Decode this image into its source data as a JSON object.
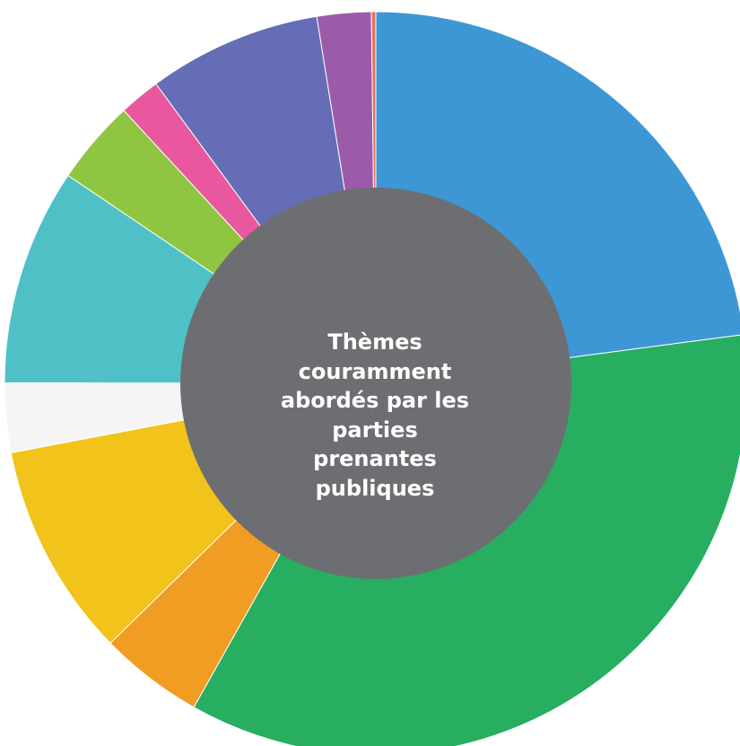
{
  "chart_data": {
    "type": "pie",
    "title": "",
    "center_label": "Thèmes\ncouramment\nabordés par les\nparties\nprenantes\npubliques",
    "center_color": "#6D6E71",
    "start_angle_deg": 0,
    "slices": [
      {
        "value": 24.3,
        "color": "#3E97D5"
      },
      {
        "value": 37.4,
        "color": "#27AE60"
      },
      {
        "value": 4.8,
        "color": "#F19C22"
      },
      {
        "value": 9.9,
        "color": "#F1C31B"
      },
      {
        "value": 3.2,
        "color": "#F5F5F5"
      },
      {
        "value": 10.0,
        "color": "#4FC1C6"
      },
      {
        "value": 3.9,
        "color": "#8FC641"
      },
      {
        "value": 1.9,
        "color": "#E9589E"
      },
      {
        "value": 8.0,
        "color": "#646DB5"
      },
      {
        "value": 2.5,
        "color": "#9B5BA9"
      },
      {
        "value": 0.2,
        "color": "#E0735A"
      }
    ]
  }
}
